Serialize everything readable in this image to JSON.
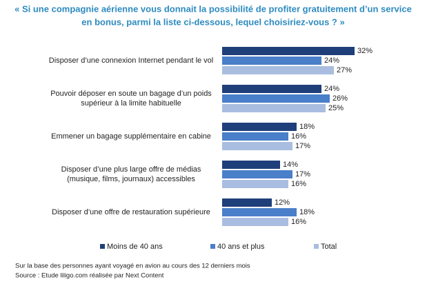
{
  "chart_data": {
    "type": "hbar",
    "title": [
      "« Si une compagnie aérienne vous donnait la possibilité de profiter gratuitement d’un service",
      "en bonus, parmi la liste ci-dessous, lequel choisiriez-vous ? »"
    ],
    "categories": [
      "Disposer d’une connexion Internet pendant le vol",
      "Pouvoir déposer en soute un bagage d’un poids supérieur à la limite habituelle",
      "Emmener un bagage supplémentaire en cabine",
      "Disposer d’une plus large offre de médias (musique, films, journaux) accessibles",
      "Disposer d’une offre de restauration supérieure"
    ],
    "series": [
      {
        "name": "Moins de 40 ans",
        "color": "#1f3f7a",
        "values": [
          32,
          24,
          18,
          14,
          12
        ],
        "value_labels": [
          "32%",
          "24%",
          "18%",
          "14%",
          "12%"
        ]
      },
      {
        "name": "40 ans et plus",
        "color": "#4a7fc9",
        "values": [
          24,
          26,
          16,
          17,
          18
        ],
        "value_labels": [
          "24%",
          "26%",
          "16%",
          "17%",
          "18%"
        ]
      },
      {
        "name": "Total",
        "color": "#a9bde0",
        "values": [
          27,
          25,
          17,
          16,
          16
        ],
        "value_labels": [
          "27%",
          "25%",
          "17%",
          "16%",
          "16%"
        ]
      }
    ],
    "notes": [
      "Sur la base des personnes ayant voyagé en avion au cours des 12 derniers mois",
      "Source : Etude liligo.com réalisée par Next Content"
    ]
  }
}
